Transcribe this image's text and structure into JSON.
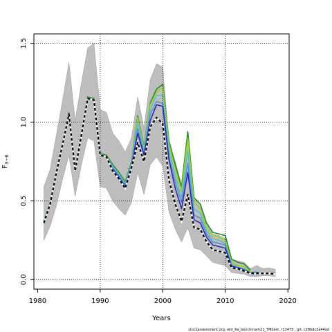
{
  "chart_data": {
    "type": "line",
    "xlabel": "Years",
    "ylabel": "F",
    "ylabel_sub": "3−6",
    "xlim": [
      1980,
      2020
    ],
    "ylim": [
      0,
      1.5
    ],
    "xticks": [
      1980,
      1990,
      2000,
      2010,
      2020
    ],
    "yticks": [
      0.0,
      0.5,
      1.0,
      1.5
    ],
    "xtick_labels": [
      "1980",
      "1990",
      "2000",
      "2010",
      "2020"
    ],
    "ytick_labels": [
      "0.0",
      "0.5",
      "1.0",
      "1.5"
    ],
    "grid": true,
    "footer": "stockassessment.org,  whi_6a_benchmark21_TMbest,  r13475 ,  git: c28bdc2a44ad",
    "colors": {
      "band": "#bebebe",
      "band_edge": "#a0a0a0",
      "grid": "#000000",
      "series": [
        "#228b22",
        "#9acd32",
        "#5bc0c8",
        "#5b8fd0",
        "#2b2bb0",
        "#000000"
      ]
    },
    "band": {
      "x": [
        1981,
        1982,
        1983,
        1984,
        1985,
        1986,
        1987,
        1988,
        1989,
        1990,
        1991,
        1992,
        1993,
        1994,
        1995,
        1996,
        1997,
        1998,
        1999,
        2000,
        2001,
        2002,
        2003,
        2004,
        2005,
        2006,
        2007,
        2008,
        2009,
        2010,
        2011,
        2012,
        2013,
        2014,
        2015,
        2016,
        2017,
        2018
      ],
      "upper": [
        0.59,
        0.7,
        0.92,
        1.14,
        1.38,
        1.01,
        1.25,
        1.47,
        1.5,
        1.08,
        1.06,
        0.93,
        0.88,
        0.81,
        0.9,
        1.16,
        0.96,
        1.27,
        1.37,
        1.35,
        0.87,
        0.75,
        0.6,
        0.93,
        0.51,
        0.47,
        0.35,
        0.29,
        0.28,
        0.26,
        0.13,
        0.12,
        0.11,
        0.07,
        0.09,
        0.07,
        0.075,
        0.065
      ],
      "lower": [
        0.25,
        0.34,
        0.47,
        0.64,
        0.79,
        0.53,
        0.73,
        0.9,
        0.88,
        0.59,
        0.58,
        0.5,
        0.45,
        0.41,
        0.49,
        0.68,
        0.54,
        0.73,
        0.78,
        0.72,
        0.43,
        0.32,
        0.24,
        0.33,
        0.2,
        0.19,
        0.15,
        0.11,
        0.1,
        0.09,
        0.045,
        0.04,
        0.035,
        0.02,
        0.02,
        0.025,
        0.025,
        0.02
      ]
    },
    "x": [
      1981,
      1982,
      1983,
      1984,
      1985,
      1986,
      1987,
      1988,
      1989,
      1990,
      1991,
      1992,
      1993,
      1994,
      1995,
      1996,
      1997,
      1998,
      1999,
      2000,
      2001,
      2002,
      2003,
      2004,
      2005,
      2006,
      2007,
      2008,
      2009,
      2010,
      2011,
      2012,
      2013,
      2014,
      2015,
      2016,
      2017,
      2018
    ],
    "series": [
      {
        "values": [
          0.37,
          0.49,
          0.69,
          0.87,
          1.06,
          0.7,
          0.93,
          1.16,
          1.15,
          0.8,
          0.79,
          0.73,
          0.68,
          0.62,
          0.75,
          1.04,
          0.84,
          1.12,
          1.21,
          1.24,
          0.88,
          0.73,
          0.59,
          0.94,
          0.52,
          0.48,
          0.36,
          0.3,
          0.29,
          0.28,
          0.13,
          0.11,
          0.1,
          0.06,
          null,
          null,
          null,
          null
        ]
      },
      {
        "values": [
          0.36,
          0.48,
          0.68,
          0.86,
          1.05,
          0.69,
          0.92,
          1.15,
          1.14,
          0.79,
          0.78,
          0.72,
          0.67,
          0.61,
          0.74,
          1.03,
          0.83,
          1.11,
          1.19,
          1.22,
          0.86,
          0.7,
          0.56,
          0.9,
          0.49,
          0.45,
          0.33,
          0.28,
          0.27,
          0.25,
          0.11,
          0.09,
          0.08,
          0.05,
          null,
          null,
          null,
          null
        ]
      },
      {
        "values": [
          0.36,
          0.48,
          0.68,
          0.86,
          1.05,
          0.69,
          0.92,
          1.15,
          1.14,
          0.79,
          0.78,
          0.72,
          0.67,
          0.61,
          0.74,
          1.0,
          0.82,
          1.08,
          1.17,
          1.17,
          0.82,
          0.66,
          0.52,
          0.82,
          0.45,
          0.42,
          0.31,
          0.26,
          0.25,
          0.23,
          0.1,
          0.08,
          0.07,
          0.045,
          0.05,
          0.04,
          null,
          null
        ]
      },
      {
        "values": [
          0.36,
          0.48,
          0.68,
          0.86,
          1.05,
          0.69,
          0.92,
          1.15,
          1.14,
          0.79,
          0.78,
          0.71,
          0.66,
          0.6,
          0.73,
          0.96,
          0.8,
          1.05,
          1.13,
          1.12,
          0.78,
          0.62,
          0.49,
          0.74,
          0.41,
          0.39,
          0.29,
          0.24,
          0.23,
          0.22,
          0.09,
          0.08,
          0.065,
          0.045,
          0.045,
          0.04,
          0.04,
          null
        ]
      },
      {
        "values": [
          0.36,
          0.48,
          0.68,
          0.86,
          1.05,
          0.69,
          0.92,
          1.15,
          1.14,
          0.79,
          0.78,
          0.7,
          0.65,
          0.59,
          0.72,
          0.93,
          0.79,
          1.01,
          1.11,
          1.1,
          0.76,
          0.58,
          0.45,
          0.68,
          0.38,
          0.36,
          0.27,
          0.22,
          0.21,
          0.2,
          0.085,
          0.075,
          0.06,
          0.045,
          0.045,
          0.04,
          0.04,
          0.04
        ]
      },
      {
        "values": [
          0.36,
          0.48,
          0.68,
          0.86,
          1.05,
          0.69,
          0.92,
          1.15,
          1.14,
          0.79,
          0.78,
          0.69,
          0.64,
          0.58,
          0.71,
          0.87,
          0.75,
          0.97,
          1.03,
          0.99,
          0.63,
          0.48,
          0.37,
          0.54,
          0.33,
          0.32,
          0.24,
          0.19,
          0.18,
          0.17,
          0.075,
          0.07,
          0.055,
          0.04,
          0.04,
          0.04,
          0.04,
          0.035
        ]
      }
    ]
  }
}
